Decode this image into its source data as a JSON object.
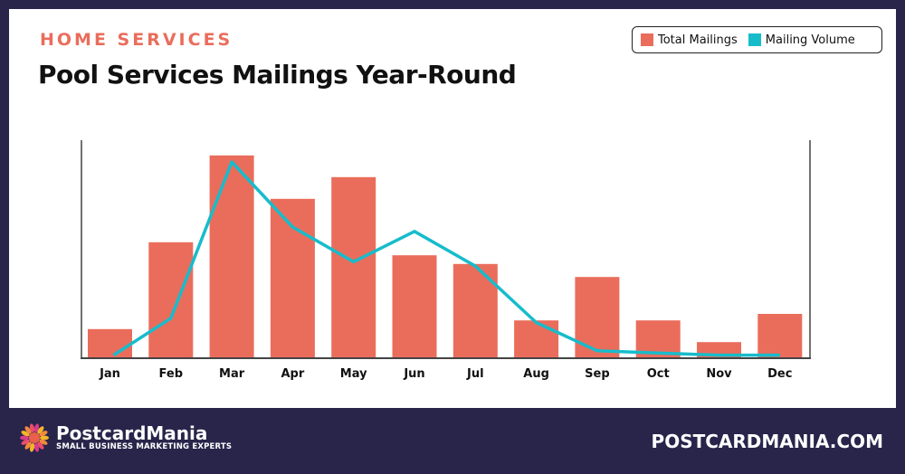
{
  "kicker": "HOME SERVICES",
  "title": "Pool Services Mailings Year-Round",
  "footer": {
    "brand": "PostcardMania",
    "tagline": "SMALL BUSINESS MARKETING EXPERTS",
    "website": "POSTCARDMANIA.COM"
  },
  "colors": {
    "bar": "#ea6d5c",
    "line": "#17bccb",
    "background": "#28244a"
  },
  "chart_data": {
    "type": "bar",
    "title": "Pool Services Mailings Year-Round",
    "categories": [
      "Jan",
      "Feb",
      "Mar",
      "Apr",
      "May",
      "Jun",
      "Jul",
      "Aug",
      "Sep",
      "Oct",
      "Nov",
      "Dec"
    ],
    "series": [
      {
        "name": "Total Mailings",
        "type": "bar",
        "values": [
          13,
          53,
          93,
          73,
          83,
          47,
          43,
          17,
          37,
          17,
          7,
          20
        ]
      },
      {
        "name": "Mailing Volume",
        "type": "line",
        "values": [
          1,
          18,
          90,
          60,
          44,
          58,
          42,
          16,
          3,
          2,
          1,
          1
        ]
      }
    ],
    "ylim": [
      0,
      100
    ],
    "grid": false,
    "legend": "top-right",
    "xlabel": "",
    "ylabel": ""
  }
}
